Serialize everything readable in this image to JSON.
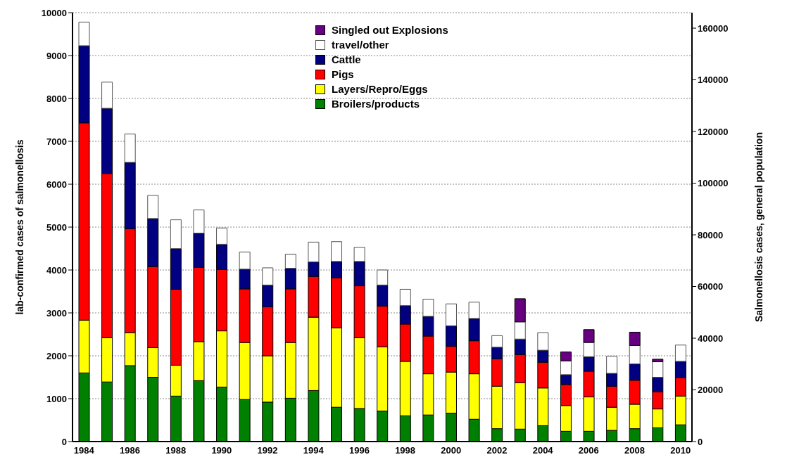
{
  "chart_data": {
    "type": "bar",
    "stacked": true,
    "ylabel": "lab-confirmed cases of salmonellosis",
    "y2label": "Salmonellosis cases, general population",
    "categories": [
      "1984",
      null,
      "1986",
      null,
      "1988",
      null,
      "1990",
      null,
      "1992",
      null,
      "1994",
      null,
      "1996",
      null,
      "1998",
      null,
      "2000",
      null,
      "2002",
      null,
      "2004",
      null,
      "2006",
      null,
      "2008",
      null,
      "2010"
    ],
    "series": [
      {
        "name": "Broilers/products",
        "color": "#008000",
        "values": [
          1600,
          1390,
          1770,
          1500,
          1060,
          1420,
          1270,
          980,
          920,
          1010,
          1190,
          800,
          770,
          710,
          600,
          620,
          660,
          520,
          300,
          290,
          370,
          240,
          240,
          260,
          300,
          320,
          390
        ]
      },
      {
        "name": "Layers/Repro/Eggs",
        "color": "#ffff00",
        "values": [
          1230,
          1030,
          770,
          690,
          720,
          910,
          1310,
          1330,
          1080,
          1300,
          1710,
          1850,
          1650,
          1500,
          1270,
          960,
          960,
          1060,
          990,
          1080,
          880,
          600,
          800,
          540,
          570,
          440,
          670
        ]
      },
      {
        "name": "Pigs",
        "color": "#ff0000",
        "values": [
          4600,
          3830,
          2420,
          1890,
          1770,
          1730,
          1430,
          1250,
          1140,
          1250,
          950,
          1170,
          1210,
          950,
          870,
          880,
          600,
          770,
          640,
          660,
          600,
          490,
          600,
          490,
          560,
          400,
          430
        ]
      },
      {
        "name": "Cattle",
        "color": "#000080",
        "values": [
          1800,
          1520,
          1550,
          1120,
          950,
          800,
          590,
          460,
          510,
          480,
          340,
          380,
          570,
          490,
          430,
          460,
          480,
          520,
          270,
          360,
          280,
          230,
          340,
          300,
          380,
          340,
          380
        ]
      },
      {
        "name": "travel/other",
        "color": "#ffffff",
        "values": [
          550,
          610,
          660,
          540,
          670,
          540,
          380,
          400,
          400,
          330,
          460,
          460,
          330,
          350,
          380,
          400,
          510,
          380,
          270,
          400,
          410,
          320,
          330,
          400,
          430,
          360,
          380
        ]
      },
      {
        "name": "Singled out Explosions",
        "color": "#660080",
        "values": [
          null,
          null,
          null,
          null,
          null,
          null,
          null,
          null,
          null,
          null,
          null,
          null,
          null,
          null,
          null,
          null,
          null,
          null,
          null,
          540,
          null,
          210,
          300,
          null,
          310,
          60,
          null
        ]
      }
    ],
    "ylim": [
      0,
      10000
    ],
    "yticks": [
      0,
      1000,
      2000,
      3000,
      4000,
      5000,
      6000,
      7000,
      8000,
      9000,
      10000
    ],
    "y2lim": [
      0,
      166000
    ],
    "y2ticks": [
      0,
      20000,
      40000,
      60000,
      80000,
      100000,
      120000,
      140000,
      160000
    ],
    "grid": "y",
    "legend": "top"
  }
}
